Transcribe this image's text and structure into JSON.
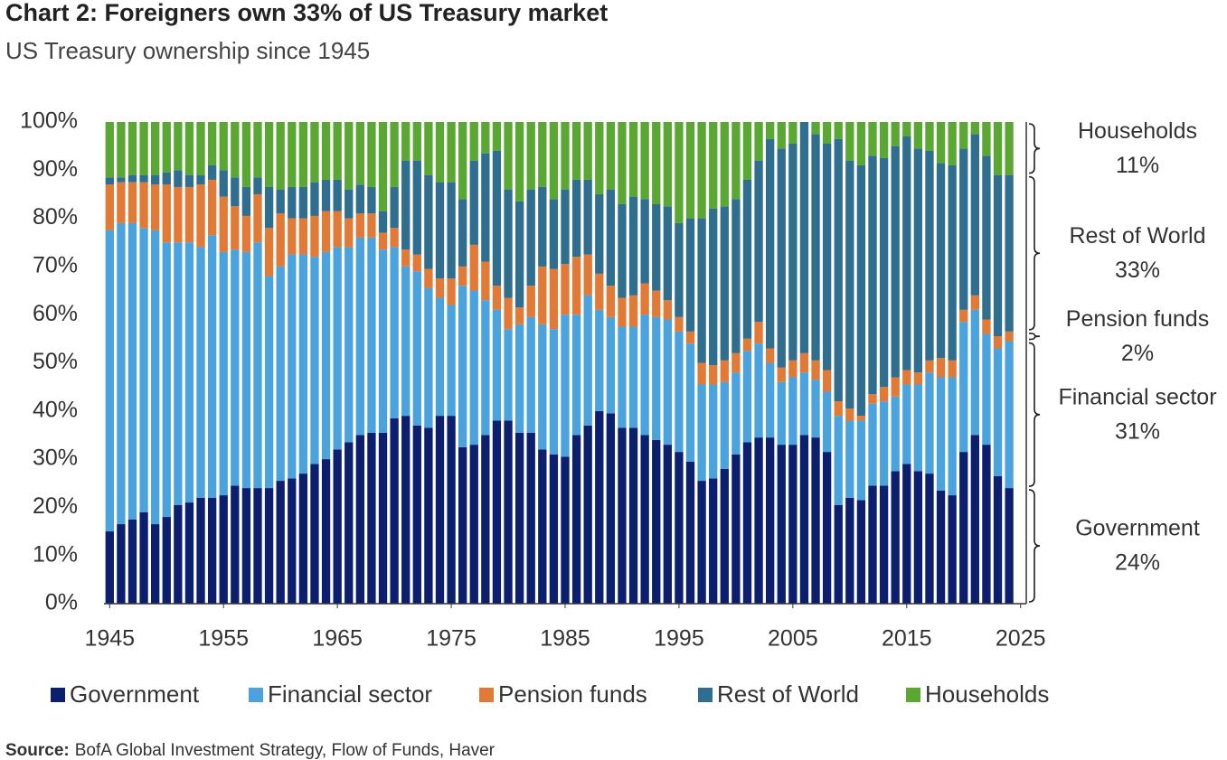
{
  "chart_data": {
    "type": "stacked_bar",
    "title": "Chart 2: Foreigners own 33% of US Treasury market",
    "subtitle": "US Treasury ownership since 1945",
    "source": {
      "label": "Source:",
      "text": "BofA Global Investment Strategy, Flow of Funds, Haver"
    },
    "x": [
      1945,
      1946,
      1947,
      1948,
      1949,
      1950,
      1951,
      1952,
      1953,
      1954,
      1955,
      1956,
      1957,
      1958,
      1959,
      1960,
      1961,
      1962,
      1963,
      1964,
      1965,
      1966,
      1967,
      1968,
      1969,
      1970,
      1971,
      1972,
      1973,
      1974,
      1975,
      1976,
      1977,
      1978,
      1979,
      1980,
      1981,
      1982,
      1983,
      1984,
      1985,
      1986,
      1987,
      1988,
      1989,
      1990,
      1991,
      1992,
      1993,
      1994,
      1995,
      1996,
      1997,
      1998,
      1999,
      2000,
      2001,
      2002,
      2003,
      2004,
      2005,
      2006,
      2007,
      2008,
      2009,
      2010,
      2011,
      2012,
      2013,
      2014,
      2015,
      2016,
      2017,
      2018,
      2019,
      2020,
      2021,
      2022,
      2023,
      2024
    ],
    "xlim": [
      1944.5,
      2025.5
    ],
    "xticks": [
      1945,
      1955,
      1965,
      1975,
      1985,
      1995,
      2005,
      2015,
      2025
    ],
    "ylim": [
      0,
      100
    ],
    "yticks": [
      {
        "value": 0,
        "label": "0%"
      },
      {
        "value": 10,
        "label": "10%"
      },
      {
        "value": 20,
        "label": "20%"
      },
      {
        "value": 30,
        "label": "30%"
      },
      {
        "value": 40,
        "label": "40%"
      },
      {
        "value": 50,
        "label": "50%"
      },
      {
        "value": 60,
        "label": "60%"
      },
      {
        "value": 70,
        "label": "70%"
      },
      {
        "value": 80,
        "label": "80%"
      },
      {
        "value": 90,
        "label": "90%"
      },
      {
        "value": 100,
        "label": "100%"
      }
    ],
    "legend": "bottom",
    "series": [
      {
        "name": "Government",
        "color": "#0c1f6e",
        "values": [
          15,
          16.5,
          17.5,
          19,
          16.5,
          18,
          20.5,
          21,
          22,
          22,
          22.5,
          24.5,
          24,
          24,
          24,
          25.5,
          26,
          27,
          29,
          30,
          32,
          33.5,
          35,
          35.5,
          35.5,
          38.5,
          39,
          37,
          36.5,
          39,
          39,
          32.5,
          33,
          35,
          38,
          38,
          35.5,
          35.5,
          32,
          31,
          30.5,
          35,
          37,
          40,
          39.5,
          36.5,
          36.5,
          35,
          34,
          33,
          31.5,
          29.5,
          25.5,
          26,
          28,
          31,
          33.5,
          34.5,
          34.5,
          33,
          33,
          35,
          34.5,
          31.5,
          20.5,
          22,
          21.5,
          24.5,
          24.5,
          27.5,
          29,
          27.5,
          27,
          23.5,
          22.5,
          31.5,
          35,
          33,
          26.5,
          24
        ]
      },
      {
        "name": "Financial sector",
        "color": "#4ba3de",
        "values": [
          62.5,
          62.5,
          61.5,
          59,
          61,
          57,
          54.5,
          54,
          52,
          54.5,
          50.5,
          49,
          49,
          51,
          44,
          44.5,
          46.5,
          45.5,
          43,
          43,
          42,
          40.5,
          41,
          40.5,
          38,
          35.5,
          31,
          32,
          29,
          24.5,
          23,
          33.5,
          32,
          28,
          23,
          19,
          22.5,
          24,
          26,
          26,
          29.5,
          25,
          27,
          21,
          20,
          21,
          21,
          25,
          25.5,
          26,
          25,
          24.5,
          20,
          19.5,
          18,
          17,
          19,
          19.5,
          15.5,
          13,
          14,
          13,
          12,
          12.5,
          18.5,
          16,
          16.5,
          17,
          17.5,
          15.5,
          16.5,
          18,
          21,
          23.5,
          24.5,
          27,
          26,
          23,
          26.5,
          30.5
        ]
      },
      {
        "name": "Pension funds",
        "color": "#e07a36",
        "values": [
          9.5,
          8.5,
          8.5,
          9.5,
          9.5,
          12,
          11.5,
          11.5,
          13,
          11.5,
          11.5,
          9,
          7.5,
          10,
          10,
          11,
          7.5,
          7.5,
          8.5,
          8.5,
          7.5,
          6,
          5,
          5,
          3.5,
          4,
          3.5,
          3.5,
          4,
          4,
          5.5,
          4,
          9.5,
          8,
          5,
          6.5,
          3.5,
          6.5,
          12,
          12.5,
          10.5,
          12,
          8.5,
          7.5,
          6.5,
          6,
          6.5,
          6.5,
          5.5,
          4,
          3,
          2.5,
          4.5,
          4,
          4.5,
          4,
          2.5,
          4.5,
          3,
          3,
          3.5,
          4,
          4,
          4.5,
          3,
          2.5,
          1,
          2,
          3,
          4,
          3,
          2.5,
          2.5,
          4,
          3.5,
          2.5,
          3,
          3,
          2.5,
          2
        ]
      },
      {
        "name": "Rest of World",
        "color": "#2f6e8f",
        "values": [
          1.5,
          1,
          1.5,
          1.5,
          2,
          2.5,
          3.5,
          2.5,
          2,
          3,
          5.5,
          6,
          6,
          3.5,
          8.5,
          5,
          6.5,
          6.5,
          7,
          6.5,
          6.5,
          6,
          6,
          5.5,
          4.5,
          8.5,
          18.5,
          19.5,
          19.5,
          20,
          20,
          14,
          17.5,
          22.5,
          28,
          22.5,
          22,
          20,
          16.5,
          14.5,
          15.5,
          16,
          15.5,
          16.5,
          20,
          19.5,
          20.5,
          17.5,
          18,
          19.5,
          19.5,
          23.5,
          30,
          32.5,
          32,
          32,
          33,
          33.5,
          43.5,
          45.5,
          45,
          48,
          47,
          47,
          54.5,
          51.5,
          52,
          49.5,
          47.5,
          48,
          48.5,
          46.5,
          43.5,
          40.5,
          40.5,
          33.5,
          33.5,
          34,
          33.5,
          32.5
        ]
      },
      {
        "name": "Households",
        "color": "#5aa833",
        "values": [
          11.5,
          11.5,
          11,
          11,
          11,
          10.5,
          10,
          11,
          11,
          9,
          10,
          11.5,
          13.5,
          11.5,
          13.5,
          14,
          13.5,
          13.5,
          12.5,
          12,
          12,
          14,
          13,
          13.5,
          18.5,
          13.5,
          8,
          8,
          11,
          12.5,
          12.5,
          16,
          8,
          6.5,
          6,
          14,
          16.5,
          14,
          13.5,
          16,
          14,
          12,
          12,
          15,
          14,
          17,
          15.5,
          16,
          17,
          17.5,
          21,
          20,
          20,
          18,
          17.5,
          16,
          12,
          8,
          3.5,
          5.5,
          4.5,
          0,
          2.5,
          4.5,
          3.5,
          8,
          9,
          7,
          7.5,
          5,
          3,
          5.5,
          6,
          8.5,
          9,
          5.5,
          2.5,
          7,
          11,
          11
        ]
      }
    ],
    "annotations": [
      {
        "text": "Households",
        "share": "11%"
      },
      {
        "text": "Rest of World",
        "share": "33%"
      },
      {
        "text": "Pension funds",
        "share": "2%"
      },
      {
        "text": "Financial sector",
        "share": "31%"
      },
      {
        "text": "Government",
        "share": "24%"
      }
    ]
  }
}
